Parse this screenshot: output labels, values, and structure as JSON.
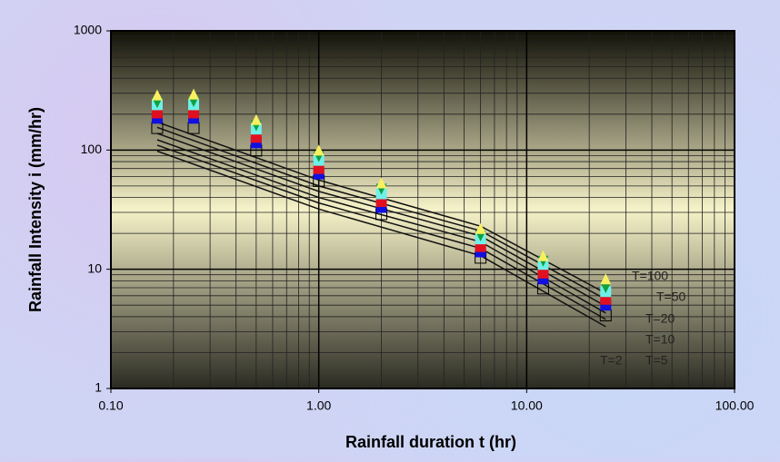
{
  "chart_data": {
    "type": "scatter",
    "xlabel": "Rainfall duration t (hr)",
    "ylabel": "Rainfall Intensity i (mm/hr)",
    "log_x": true,
    "log_y": true,
    "grid": true,
    "minor_grid": true,
    "xlim": [
      0.1,
      100
    ],
    "xticks": [
      {
        "value": 0.1,
        "label": "0.10"
      },
      {
        "value": 1,
        "label": "1.00"
      },
      {
        "value": 10,
        "label": "10.00"
      },
      {
        "value": 100,
        "label": "100.00"
      }
    ],
    "ylim": [
      1,
      1000
    ],
    "yticks": [
      1,
      10,
      100,
      1000
    ],
    "x": [
      0.167,
      0.25,
      0.5,
      1,
      2,
      6,
      12,
      24
    ],
    "series": [
      {
        "color": "#000000",
        "marker": "open-square",
        "values": [
          153,
          153,
          99,
          55,
          29,
          12.5,
          6.9,
          4.1
        ]
      },
      {
        "color": "#1010e0",
        "marker": "square",
        "values": [
          185,
          185,
          115,
          63,
          33,
          14,
          8.3,
          5.0
        ]
      },
      {
        "color": "#e01020",
        "marker": "square",
        "values": [
          205,
          205,
          128,
          70,
          37,
          15.5,
          9.3,
          5.6
        ]
      },
      {
        "color": "#70f0e8",
        "marker": "square",
        "values": [
          240,
          240,
          150,
          82,
          43,
          18,
          11,
          6.5
        ]
      },
      {
        "color": "#10a040",
        "marker": "triangle-down",
        "values": [
          250,
          255,
          160,
          88,
          47,
          19,
          11.7,
          7
        ]
      },
      {
        "color": "#f8f060",
        "marker": "triangle",
        "values": [
          290,
          295,
          180,
          100,
          53,
          22,
          13,
          8.3
        ]
      }
    ],
    "curve_x": [
      0.167,
      1,
      6,
      24
    ],
    "curves": [
      {
        "name": "T=2",
        "values": [
          98,
          32,
          13,
          3.3
        ]
      },
      {
        "name": "T=5",
        "values": [
          110,
          36,
          15,
          3.8
        ]
      },
      {
        "name": "T=10",
        "values": [
          122,
          40,
          17,
          4.3
        ]
      },
      {
        "name": "T=20",
        "values": [
          138,
          45,
          19,
          4.9
        ]
      },
      {
        "name": "T=50",
        "values": [
          155,
          50,
          21,
          5.6
        ]
      },
      {
        "name": "T=100",
        "values": [
          172,
          56,
          23,
          6.3
        ]
      }
    ],
    "curve_color": "#111111"
  }
}
